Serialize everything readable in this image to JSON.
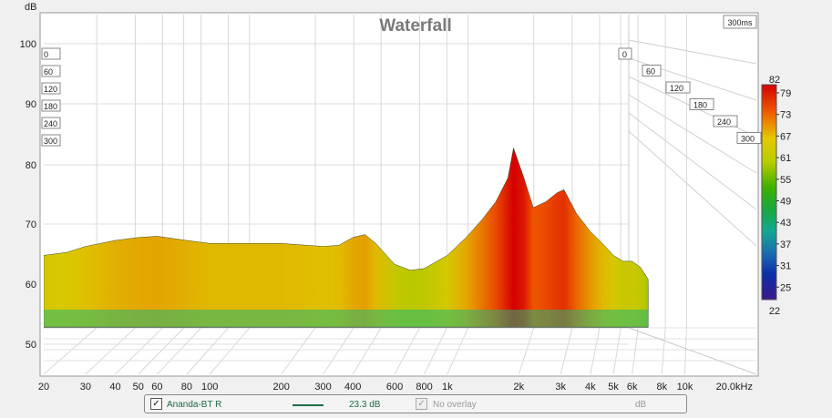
{
  "chart_data": {
    "type": "area",
    "title": "Waterfall",
    "ylabel": "dB",
    "xlabel_unit": "20.0kHz",
    "y_ticks": [
      "100",
      "90",
      "80",
      "70",
      "60",
      "50"
    ],
    "y_range": [
      47,
      103
    ],
    "x_ticks": [
      "20",
      "30",
      "40",
      "50",
      "60",
      "80",
      "100",
      "200",
      "300",
      "400",
      "600",
      "800",
      "1k",
      "2k",
      "3k",
      "4k",
      "5k",
      "6k",
      "8k",
      "10k"
    ],
    "x_range": [
      20,
      20000
    ],
    "time_corner": "300ms",
    "time_labels_left": [
      "0",
      "60",
      "120",
      "180",
      "240",
      "300"
    ],
    "time_labels_right": [
      "0",
      "60",
      "120",
      "180",
      "240",
      "300"
    ],
    "time_range_ms": [
      0,
      300
    ],
    "colorbar": {
      "top": "82",
      "bottom": "22",
      "ticks": [
        "79",
        "73",
        "67",
        "61",
        "55",
        "49",
        "43",
        "37",
        "31",
        "25"
      ]
    },
    "series": [
      {
        "name": "Ananda-BT R",
        "description_front_slice_freq_hz": [
          20,
          25,
          30,
          40,
          50,
          60,
          80,
          100,
          150,
          200,
          300,
          350,
          400,
          450,
          500,
          600,
          700,
          800,
          1000,
          1200,
          1400,
          1600,
          1800,
          1900,
          2100,
          2300,
          2600,
          2900,
          3100,
          3500,
          4000,
          4500,
          5000,
          5500,
          6000,
          6500,
          7000
        ],
        "values": [
          67,
          67.5,
          68.5,
          69.5,
          70,
          70.2,
          69.5,
          69,
          69,
          69,
          68.5,
          68.7,
          70,
          70.5,
          69,
          65.5,
          64.5,
          64.8,
          67,
          70,
          73,
          76,
          80,
          85,
          80,
          75,
          76,
          77.5,
          78,
          74,
          71,
          69,
          67,
          66,
          66,
          65,
          63
        ]
      }
    ]
  },
  "legend": {
    "series_name": "Ananda-BT R",
    "series_checked": "✓",
    "series_color": "#1f6e45",
    "series_value": "23.3 dB",
    "overlay_checked": "✓",
    "overlay_label": "No overlay",
    "overlay_unit": "dB"
  }
}
